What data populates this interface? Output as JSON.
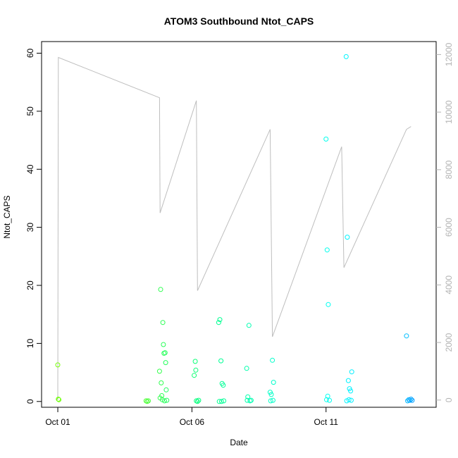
{
  "chart_data": {
    "type": "scatter",
    "title": "ATOM3 Southbound Ntot_CAPS",
    "xlabel": "Date",
    "ylabel": "Ntot_CAPS",
    "xlim": [
      "2017-09-30T12:00",
      "2017-10-15T00:00"
    ],
    "ylim": [
      -1,
      62
    ],
    "x_ticks": [
      {
        "label": "Oct 01",
        "value": "2017-10-01"
      },
      {
        "label": "Oct 06",
        "value": "2017-10-06"
      },
      {
        "label": "Oct 11",
        "value": "2017-10-11"
      }
    ],
    "y_ticks": [
      0,
      10,
      20,
      30,
      40,
      50,
      60
    ],
    "secondary_axis": {
      "ticks": [
        0,
        2000,
        4000,
        6000,
        8000,
        10000,
        12000
      ],
      "range": [
        -250,
        12450
      ],
      "color": "#b3b3b3"
    },
    "grid": false,
    "legend": "none",
    "point_color_scale": [
      "#7fff00",
      "#00ff7f",
      "#00ffff",
      "#0099ff"
    ],
    "series": [
      {
        "values": [
          [
            "2017-10-01T00:00",
            6.3,
            0.02
          ],
          [
            "2017-10-01T00:30",
            0.4,
            0.03
          ],
          [
            "2017-10-01T01:00",
            0.3,
            0.04
          ],
          [
            "2017-10-04T07:00",
            0.1,
            0.13
          ],
          [
            "2017-10-04T08:00",
            0.0,
            0.14
          ],
          [
            "2017-10-04T09:00",
            0.1,
            0.15
          ],
          [
            "2017-10-04T19:00",
            5.2,
            0.2
          ],
          [
            "2017-10-04T20:00",
            19.3,
            0.21
          ],
          [
            "2017-10-04T20:30",
            3.2,
            0.21
          ],
          [
            "2017-10-04T21:00",
            1.0,
            0.22
          ],
          [
            "2017-10-04T22:00",
            13.6,
            0.22
          ],
          [
            "2017-10-04T22:30",
            9.8,
            0.23
          ],
          [
            "2017-10-04T23:00",
            8.3,
            0.23
          ],
          [
            "2017-10-05T00:00",
            8.4,
            0.24
          ],
          [
            "2017-10-05T00:30",
            6.7,
            0.24
          ],
          [
            "2017-10-04T19:30",
            0.6,
            0.2
          ],
          [
            "2017-10-04T21:30",
            0.3,
            0.22
          ],
          [
            "2017-10-04T23:30",
            0.1,
            0.23
          ],
          [
            "2017-10-05T01:00",
            2.0,
            0.25
          ],
          [
            "2017-10-05T01:30",
            0.2,
            0.25
          ],
          [
            "2017-10-06T02:00",
            4.5,
            0.3
          ],
          [
            "2017-10-06T03:00",
            6.9,
            0.31
          ],
          [
            "2017-10-06T03:30",
            5.4,
            0.31
          ],
          [
            "2017-10-06T04:00",
            0.1,
            0.32
          ],
          [
            "2017-10-06T05:00",
            0.0,
            0.32
          ],
          [
            "2017-10-06T06:00",
            0.2,
            0.33
          ],
          [
            "2017-10-07T00:00",
            13.6,
            0.38
          ],
          [
            "2017-10-07T01:00",
            14.1,
            0.38
          ],
          [
            "2017-10-07T02:00",
            7.0,
            0.39
          ],
          [
            "2017-10-07T03:00",
            3.1,
            0.39
          ],
          [
            "2017-10-07T04:00",
            2.8,
            0.4
          ],
          [
            "2017-10-07T00:30",
            0.0,
            0.38
          ],
          [
            "2017-10-07T02:30",
            0.0,
            0.39
          ],
          [
            "2017-10-07T04:30",
            0.1,
            0.4
          ],
          [
            "2017-10-08T01:00",
            5.7,
            0.45
          ],
          [
            "2017-10-08T03:00",
            13.1,
            0.46
          ],
          [
            "2017-10-08T02:00",
            0.8,
            0.45
          ],
          [
            "2017-10-08T01:30",
            0.2,
            0.45
          ],
          [
            "2017-10-08T04:00",
            0.1,
            0.46
          ],
          [
            "2017-10-08T05:00",
            0.2,
            0.47
          ],
          [
            "2017-10-08T22:00",
            1.6,
            0.52
          ],
          [
            "2017-10-08T23:00",
            1.2,
            0.52
          ],
          [
            "2017-10-09T00:00",
            7.1,
            0.53
          ],
          [
            "2017-10-09T01:00",
            3.3,
            0.53
          ],
          [
            "2017-10-08T22:30",
            0.1,
            0.52
          ],
          [
            "2017-10-09T00:30",
            0.2,
            0.53
          ],
          [
            "2017-10-11T00:00",
            45.2,
            0.62
          ],
          [
            "2017-10-11T01:00",
            26.1,
            0.62
          ],
          [
            "2017-10-11T02:00",
            16.7,
            0.63
          ],
          [
            "2017-10-11T01:30",
            0.9,
            0.63
          ],
          [
            "2017-10-11T00:30",
            0.3,
            0.62
          ],
          [
            "2017-10-11T03:00",
            0.2,
            0.63
          ],
          [
            "2017-10-11T18:00",
            59.4,
            0.7
          ],
          [
            "2017-10-11T19:00",
            28.3,
            0.7
          ],
          [
            "2017-10-11T20:00",
            3.6,
            0.71
          ],
          [
            "2017-10-11T21:00",
            2.2,
            0.71
          ],
          [
            "2017-10-11T22:00",
            1.8,
            0.72
          ],
          [
            "2017-10-11T23:00",
            5.1,
            0.72
          ],
          [
            "2017-10-11T18:30",
            0.1,
            0.7
          ],
          [
            "2017-10-11T20:30",
            0.3,
            0.71
          ],
          [
            "2017-10-11T22:30",
            0.2,
            0.72
          ],
          [
            "2017-10-14T00:00",
            11.3,
            0.88
          ],
          [
            "2017-10-14T01:00",
            0.1,
            0.9
          ],
          [
            "2017-10-14T02:00",
            0.3,
            0.92
          ],
          [
            "2017-10-14T03:00",
            0.2,
            0.94
          ],
          [
            "2017-10-14T04:00",
            0.4,
            0.96
          ],
          [
            "2017-10-14T05:00",
            0.2,
            0.98
          ]
        ]
      },
      {
        "axis": "secondary",
        "color": "#bebebe",
        "values": [
          [
            "2017-10-01T00:00",
            0
          ],
          [
            "2017-10-01T00:30",
            11900
          ],
          [
            "2017-10-04T19:00",
            10500
          ],
          [
            "2017-10-04T19:30",
            6500
          ],
          [
            "2017-10-06T04:00",
            10400
          ],
          [
            "2017-10-06T05:00",
            3800
          ],
          [
            "2017-10-08T22:00",
            9400
          ],
          [
            "2017-10-09T00:00",
            2200
          ],
          [
            "2017-10-11T14:00",
            8800
          ],
          [
            "2017-10-11T16:00",
            4600
          ],
          [
            "2017-10-14T00:00",
            9400
          ],
          [
            "2017-10-14T04:00",
            9500
          ]
        ]
      }
    ]
  }
}
